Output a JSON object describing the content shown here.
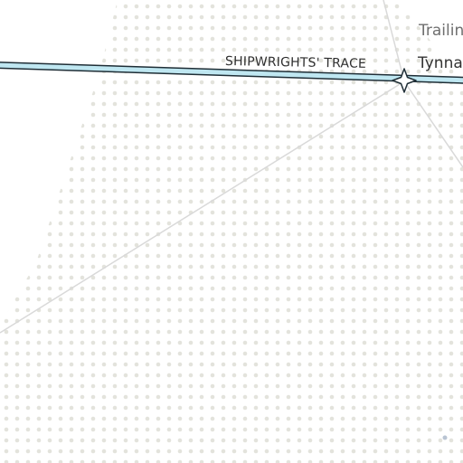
{
  "map": {
    "road": {
      "name": "SHIPWRIGHTS' TRACE"
    },
    "places": [
      {
        "name": "Trailin"
      },
      {
        "name": "Tynna"
      }
    ],
    "marker": {
      "icon": "four-point-star-icon"
    },
    "colors": {
      "background": "#ffffff",
      "dot_pattern": "#e3e3dc",
      "road_fill": "#bfe7f1",
      "road_casing": "#1f2e36",
      "minor_road": "#d9d9d9"
    }
  }
}
